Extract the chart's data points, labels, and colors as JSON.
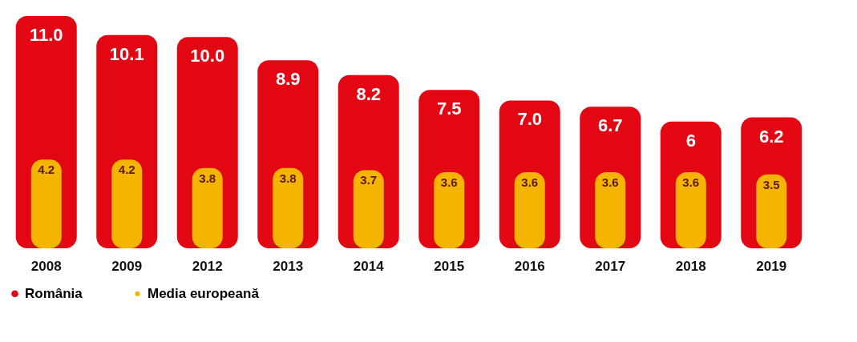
{
  "chart_data": {
    "type": "bar",
    "categories": [
      "2008",
      "2009",
      "2012",
      "2013",
      "2014",
      "2015",
      "2016",
      "2017",
      "2018",
      "2019"
    ],
    "series": [
      {
        "name": "România",
        "color": "#e30613",
        "values": [
          11.0,
          10.1,
          10.0,
          8.9,
          8.2,
          7.5,
          7.0,
          6.7,
          6,
          6.2
        ],
        "value_labels": [
          "11.0",
          "10.1",
          "10.0",
          "8.9",
          "8.2",
          "7.5",
          "7.0",
          "6.7",
          "6",
          "6.2"
        ]
      },
      {
        "name": "Media europeană",
        "color": "#f5b400",
        "values": [
          4.2,
          4.2,
          3.8,
          3.8,
          3.7,
          3.6,
          3.6,
          3.6,
          3.6,
          3.5
        ],
        "value_labels": [
          "4.2",
          "4.2",
          "3.8",
          "3.8",
          "3.7",
          "3.6",
          "3.6",
          "3.6",
          "3.6",
          "3.5"
        ]
      }
    ],
    "legend": "bottom"
  }
}
